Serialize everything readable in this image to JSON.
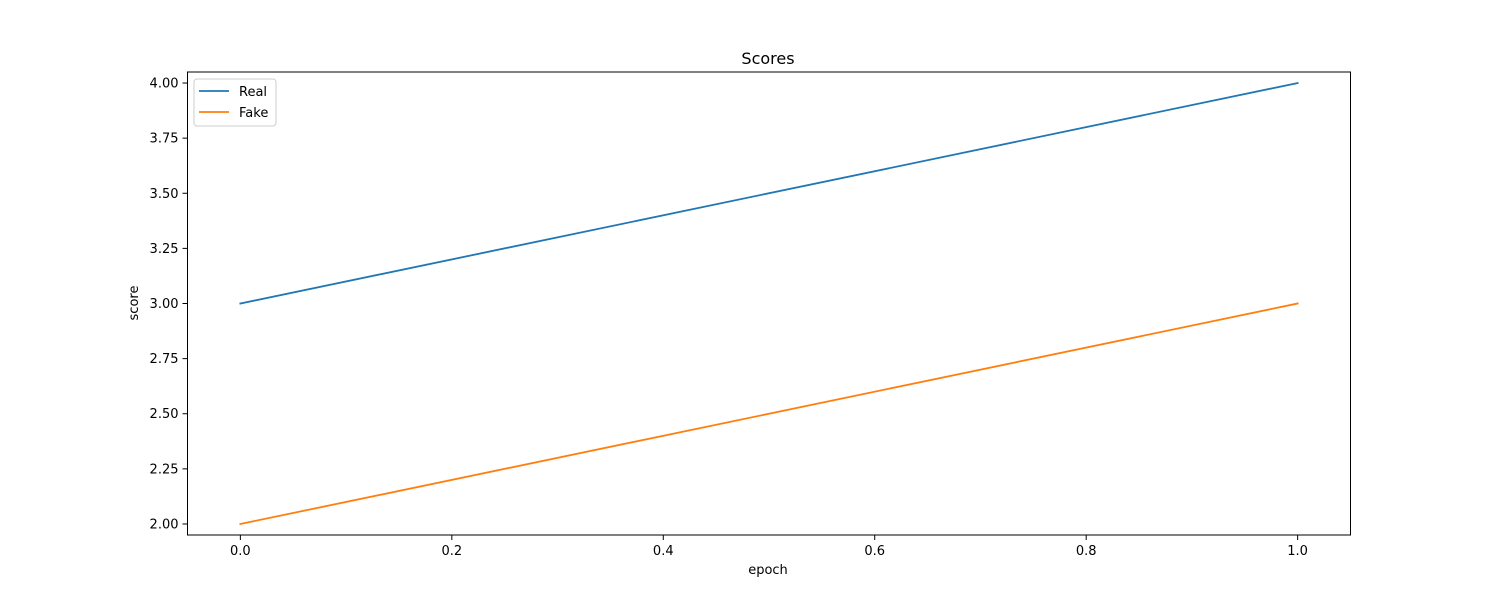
{
  "chart_data": {
    "type": "line",
    "title": "Scores",
    "xlabel": "epoch",
    "ylabel": "score",
    "xlim": [
      -0.05,
      1.05
    ],
    "ylim": [
      1.95,
      4.05
    ],
    "xticks": [
      0.0,
      0.2,
      0.4,
      0.6,
      0.8,
      1.0
    ],
    "xtick_labels": [
      "0.0",
      "0.2",
      "0.4",
      "0.6",
      "0.8",
      "1.0"
    ],
    "yticks": [
      2.0,
      2.25,
      2.5,
      2.75,
      3.0,
      3.25,
      3.5,
      3.75,
      4.0
    ],
    "ytick_labels": [
      "2.00",
      "2.25",
      "2.50",
      "2.75",
      "3.00",
      "3.25",
      "3.50",
      "3.75",
      "4.00"
    ],
    "grid": false,
    "legend_position": "top-left",
    "x": [
      0,
      1
    ],
    "series": [
      {
        "name": "Real",
        "values": [
          3.0,
          4.0
        ],
        "color": "#1f77b4"
      },
      {
        "name": "Fake",
        "values": [
          2.0,
          3.0
        ],
        "color": "#ff7f0e"
      }
    ]
  }
}
